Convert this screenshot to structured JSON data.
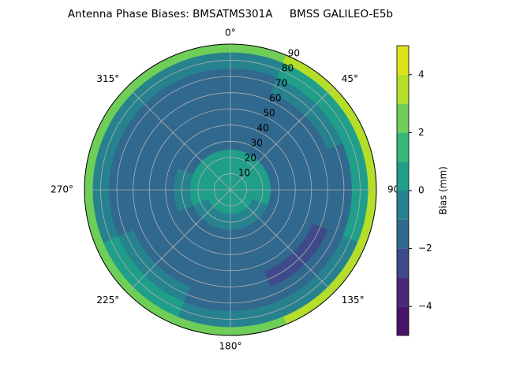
{
  "chart_data": {
    "type": "polar_contour",
    "title": "Antenna Phase Biases: BMSATMS301A     BMSS GALILEO-E5b",
    "radii": [
      0,
      10,
      20,
      30,
      40,
      50,
      60,
      70,
      80,
      90
    ],
    "azimuths": [
      0,
      45,
      90,
      135,
      180,
      225,
      270,
      315
    ],
    "values": [
      [
        0.5,
        0.5,
        0.5,
        0.5,
        0.5,
        0.5,
        0.5,
        0.5
      ],
      [
        0.5,
        0.5,
        0.5,
        0.5,
        0.5,
        0.5,
        0.5,
        0.5
      ],
      [
        0.3,
        0.3,
        0.3,
        -0.5,
        -0.5,
        -0.3,
        0.3,
        0.2
      ],
      [
        -1.5,
        -1.5,
        -1.5,
        -1.5,
        -1.5,
        -1.5,
        -0.5,
        -1.5
      ],
      [
        -1.5,
        -1.5,
        -1.5,
        -1.5,
        -1.5,
        -1.5,
        -1.5,
        -1.5
      ],
      [
        -1.5,
        -1.5,
        -1.5,
        -1.5,
        -1.5,
        -1.5,
        -1.5,
        -1.5
      ],
      [
        -1.5,
        -1.5,
        -1.5,
        -2.5,
        -1.5,
        -1.5,
        -1.5,
        -1.5
      ],
      [
        -1.5,
        -0.5,
        -1.5,
        -1.5,
        -1.5,
        -0.5,
        -1.5,
        -1.5
      ],
      [
        -0.5,
        0.5,
        0.5,
        -0.5,
        -0.5,
        0.5,
        -0.5,
        -0.5
      ],
      [
        2.5,
        3.5,
        3.5,
        3.5,
        2.5,
        2.5,
        2.5,
        2.5
      ]
    ],
    "levels": [
      -5,
      -4,
      -3,
      -2,
      -1,
      0,
      1,
      2,
      3,
      4,
      5
    ],
    "colors": [
      "#481467",
      "#482878",
      "#3e4a89",
      "#31688e",
      "#26828e",
      "#1f9e89",
      "#35b779",
      "#6ece58",
      "#b5de2b",
      "#dde318"
    ],
    "rlim": [
      0,
      90
    ],
    "rticks": [
      10,
      20,
      30,
      40,
      50,
      60,
      70,
      80,
      90
    ],
    "thetaticks": [
      {
        "value": 0,
        "label": "0°"
      },
      {
        "value": 45,
        "label": "45°"
      },
      {
        "value": 90,
        "label": "90°"
      },
      {
        "value": 135,
        "label": "135°"
      },
      {
        "value": 180,
        "label": "180°"
      },
      {
        "value": 225,
        "label": "225°"
      },
      {
        "value": 270,
        "label": "270°"
      },
      {
        "value": 315,
        "label": "315°"
      }
    ],
    "colorbar_label": "Bias (mm)",
    "colorbar_ticks": [
      {
        "value": -4,
        "label": "−4"
      },
      {
        "value": -2,
        "label": "−2"
      },
      0,
      2,
      4
    ],
    "grid": true
  }
}
